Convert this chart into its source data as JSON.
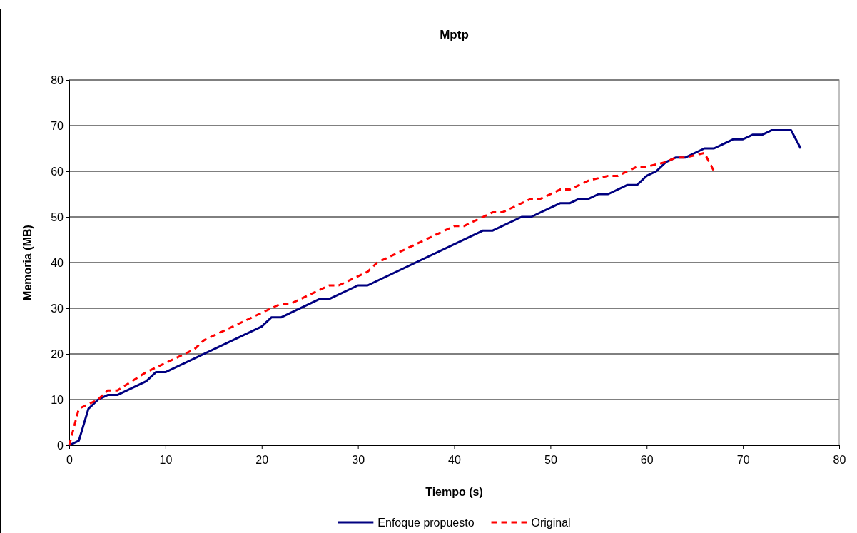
{
  "chart_data": {
    "type": "line",
    "title": "Mptp",
    "xlabel": "Tiempo (s)",
    "ylabel": "Memoria (MB)",
    "xlim": [
      0,
      80
    ],
    "xticks": [
      0,
      10,
      20,
      30,
      40,
      50,
      60,
      70,
      80
    ],
    "ylim": [
      0,
      80
    ],
    "yticks": [
      0,
      10,
      20,
      30,
      40,
      50,
      60,
      70,
      80
    ],
    "grid": "y",
    "legend": "bottom",
    "series": [
      {
        "name": "Enfoque propuesto",
        "color": "#000080",
        "line_style": "solid",
        "x": [
          0,
          1,
          2,
          3,
          4,
          5,
          8,
          9,
          10,
          20,
          21,
          22,
          26,
          27,
          30,
          31,
          43,
          44,
          47,
          48,
          51,
          52,
          53,
          54,
          55,
          56,
          58,
          59,
          60,
          61,
          62,
          63,
          64,
          66,
          67,
          69,
          70,
          71,
          72,
          73,
          75,
          76
        ],
        "values": [
          0,
          1,
          8,
          10,
          11,
          11,
          14,
          16,
          16,
          26,
          28,
          28,
          32,
          32,
          35,
          35,
          47,
          47,
          50,
          50,
          53,
          53,
          54,
          54,
          55,
          55,
          57,
          57,
          59,
          60,
          62,
          63,
          63,
          65,
          65,
          67,
          67,
          68,
          68,
          69,
          69,
          65
        ]
      },
      {
        "name": "Original",
        "color": "#ff0000",
        "line_style": "dashed",
        "x": [
          0,
          1,
          2,
          3,
          4,
          5,
          8,
          10,
          13,
          14,
          20,
          21,
          22,
          23,
          26,
          27,
          28,
          31,
          32,
          39,
          40,
          41,
          43,
          44,
          45,
          47,
          48,
          49,
          51,
          52,
          54,
          56,
          57,
          59,
          60,
          62,
          63,
          64,
          66,
          67
        ],
        "values": [
          0,
          8,
          9,
          10,
          12,
          12,
          16,
          18,
          21,
          23,
          29,
          30,
          31,
          31,
          34,
          35,
          35,
          38,
          40,
          47,
          48,
          48,
          50,
          51,
          51,
          53,
          54,
          54,
          56,
          56,
          58,
          59,
          59,
          61,
          61,
          62,
          63,
          63,
          64,
          60
        ]
      }
    ]
  }
}
